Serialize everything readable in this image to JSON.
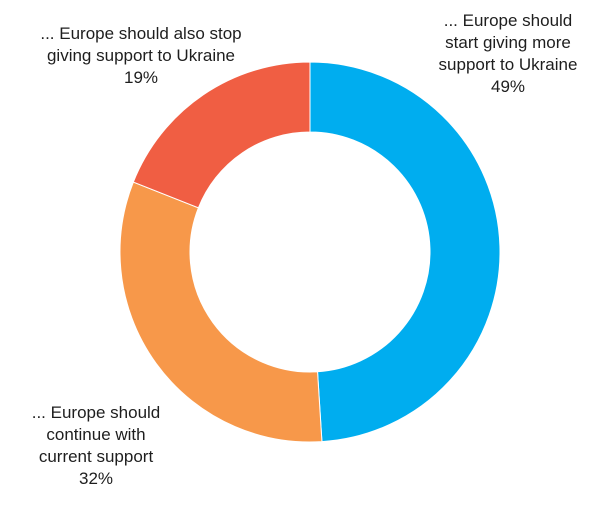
{
  "chart_data": {
    "type": "pie",
    "donut": true,
    "start_angle_deg": 0,
    "direction": "clockwise",
    "slices": [
      {
        "label_lines": [
          "... Europe should",
          "start giving more",
          "support to Ukraine"
        ],
        "value": 49,
        "value_label": "49%",
        "color": "#00adef"
      },
      {
        "label_lines": [
          "... Europe should",
          "continue with",
          "current support"
        ],
        "value": 32,
        "value_label": "32%",
        "color": "#f7984a"
      },
      {
        "label_lines": [
          "... Europe should also stop",
          "giving support to Ukraine"
        ],
        "value": 19,
        "value_label": "19%",
        "color": "#f05e43"
      }
    ]
  }
}
